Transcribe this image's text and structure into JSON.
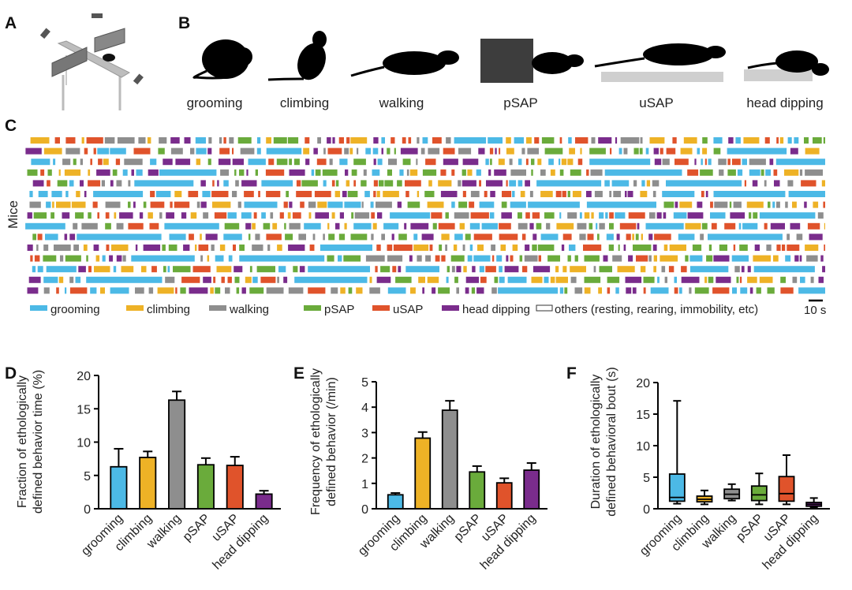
{
  "panels": {
    "a": "A",
    "b": "B",
    "c": "C",
    "d": "D",
    "e": "E",
    "f": "F"
  },
  "behaviors": [
    "grooming",
    "climbing",
    "walking",
    "pSAP",
    "uSAP",
    "head dipping"
  ],
  "colors": {
    "grooming": "#4cb9e6",
    "climbing": "#eeb226",
    "walking": "#8e8e8e",
    "pSAP": "#6aab3b",
    "uSAP": "#e0532b",
    "head dipping": "#7a2c8c"
  },
  "raster": {
    "ylabel": "Mice",
    "legend": [
      "grooming",
      "climbing",
      "walking",
      "pSAP",
      "uSAP",
      "head dipping",
      "others (resting, rearing, immobility, etc)"
    ],
    "scale_bar": "10 s"
  },
  "chart_data": [
    {
      "type": "bar",
      "panel": "D",
      "ylabel": "Fraction of ethologically defined behavior time (%)",
      "ylabel_lines": [
        "Fraction of ethologically",
        "defined behavior time (%)"
      ],
      "categories": [
        "grooming",
        "climbing",
        "walking",
        "pSAP",
        "uSAP",
        "head dipping"
      ],
      "values": [
        6.3,
        7.7,
        16.3,
        6.6,
        6.5,
        2.2
      ],
      "error_upper": [
        9.0,
        8.6,
        17.6,
        7.6,
        7.8,
        2.7
      ],
      "ylim": [
        0,
        20
      ],
      "yticks": [
        0,
        5,
        10,
        15,
        20
      ]
    },
    {
      "type": "bar",
      "panel": "E",
      "ylabel": "Frequency of ethologically defined behavior (/min)",
      "ylabel_lines": [
        "Frequency of ethologically",
        "defined behavior (/min)"
      ],
      "categories": [
        "grooming",
        "climbing",
        "walking",
        "pSAP",
        "uSAP",
        "head dipping"
      ],
      "values": [
        0.55,
        2.78,
        3.88,
        1.45,
        1.02,
        1.52
      ],
      "error_upper": [
        0.62,
        3.02,
        4.25,
        1.68,
        1.2,
        1.8
      ],
      "ylim": [
        0,
        5
      ],
      "yticks": [
        0,
        1,
        2,
        3,
        4,
        5
      ]
    },
    {
      "type": "box",
      "panel": "F",
      "ylabel": "Duration of ethologically defined behavioral bout (s)",
      "ylabel_lines": [
        "Duration of ethologically",
        "defined behavioral bout (s)"
      ],
      "categories": [
        "grooming",
        "climbing",
        "walking",
        "pSAP",
        "uSAP",
        "head dipping"
      ],
      "min": [
        0.8,
        0.7,
        1.3,
        0.7,
        0.7,
        0.2
      ],
      "q1": [
        1.2,
        1.1,
        1.6,
        1.3,
        1.2,
        0.4
      ],
      "median": [
        1.8,
        1.5,
        2.3,
        2.2,
        2.4,
        0.7
      ],
      "q3": [
        5.5,
        2.0,
        3.1,
        3.6,
        5.1,
        1.0
      ],
      "max": [
        17.1,
        2.9,
        3.9,
        5.6,
        8.5,
        1.7
      ],
      "ylim": [
        0,
        20
      ],
      "yticks": [
        0,
        5,
        10,
        15,
        20
      ]
    }
  ]
}
